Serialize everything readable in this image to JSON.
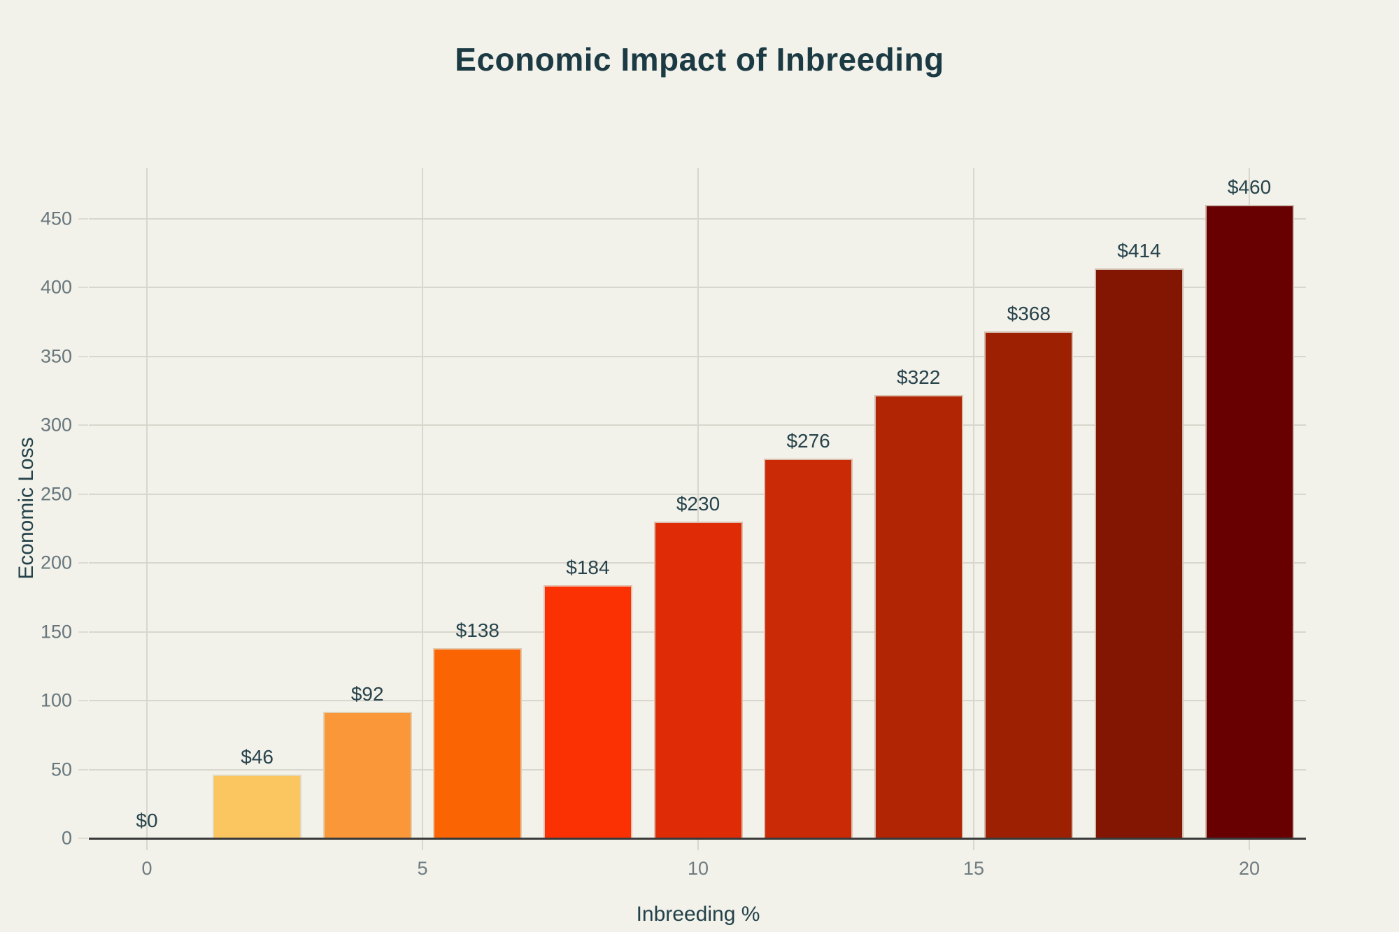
{
  "page": {
    "background": "#F2F1EA"
  },
  "colors": {
    "title": "#1B3A43",
    "axis_title": "#24424A",
    "tick_label": "#68777C",
    "value_label": "#27434B",
    "gridline": "#D8D6CD",
    "axis_line": "#3A3A3A",
    "bar_stroke": "#DEDACD"
  },
  "chart_data": {
    "type": "bar",
    "title": "Economic Impact of Inbreeding",
    "xlabel": "Inbreeding %",
    "ylabel": "Economic Loss",
    "x": [
      0,
      2,
      4,
      6,
      8,
      10,
      12,
      14,
      16,
      18,
      20
    ],
    "values": [
      0,
      46,
      92,
      138,
      184,
      230,
      276,
      322,
      368,
      414,
      460
    ],
    "bar_labels": [
      "$0",
      "$46",
      "$92",
      "$138",
      "$184",
      "$230",
      "$276",
      "$322",
      "$368",
      "$414",
      "$460"
    ],
    "bar_colors": [
      null,
      "#FBC660",
      "#FA9738",
      "#FA6403",
      "#FC3103",
      "#E02C06",
      "#CB2A06",
      "#B22504",
      "#9E2003",
      "#821602",
      "#680001"
    ],
    "x_ticks": [
      "0",
      "5",
      "10",
      "15",
      "20"
    ],
    "x_tick_values": [
      0,
      5,
      10,
      15,
      20
    ],
    "y_ticks": [
      "0",
      "50",
      "100",
      "150",
      "200",
      "250",
      "300",
      "350",
      "400",
      "450"
    ],
    "y_tick_values": [
      0,
      50,
      100,
      150,
      200,
      250,
      300,
      350,
      400,
      450
    ],
    "xlim": [
      -1.05,
      21.05
    ],
    "ylim": [
      0,
      487
    ],
    "grid": true,
    "legend": "none"
  }
}
